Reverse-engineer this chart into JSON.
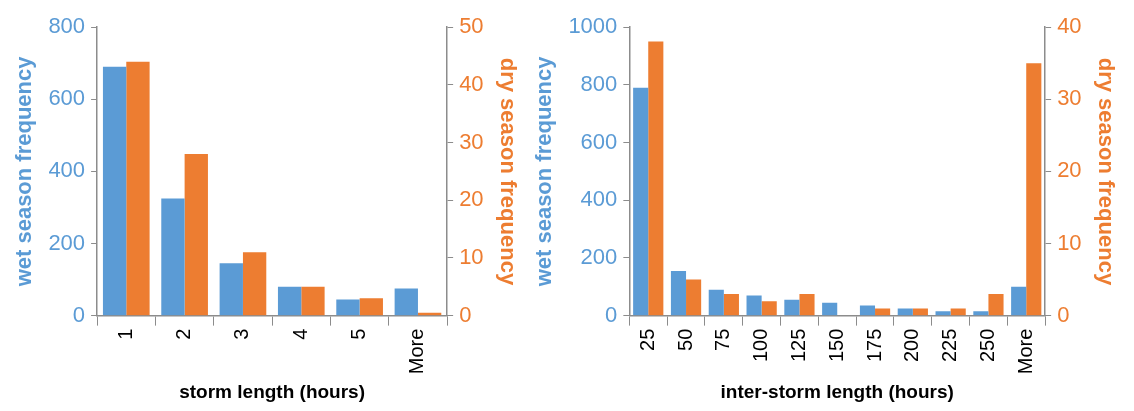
{
  "chart_data": [
    {
      "type": "bar",
      "xlabel": "storm length (hours)",
      "ylabel": "wet season frequency",
      "y2label": "dry season frequency",
      "categories": [
        "1",
        "2",
        "3",
        "4",
        "5",
        "More"
      ],
      "series": [
        {
          "name": null,
          "color": "#5b9bd5",
          "values": [
            690,
            325,
            145,
            80,
            45,
            75
          ]
        },
        {
          "color": "#ed7d31",
          "axis": "y2",
          "values": [
            44,
            28,
            11,
            5,
            3,
            0.5
          ]
        }
      ],
      "ylim": [
        0,
        800
      ],
      "yticks": [
        0,
        200,
        400,
        600,
        800
      ],
      "y2lim": [
        0,
        50
      ],
      "y2ticks": [
        0,
        10,
        20,
        30,
        40,
        50
      ],
      "grid": false,
      "legend": false
    },
    {
      "type": "bar",
      "xlabel": "inter-storm length (hours)",
      "ylabel": "wet season frequency",
      "y2label": "dry season frequency",
      "categories": [
        "25",
        "50",
        "75",
        "100",
        "125",
        "150",
        "175",
        "200",
        "225",
        "250",
        "More"
      ],
      "series": [
        {
          "color": "#5b9bd5",
          "values": [
            790,
            155,
            90,
            70,
            55,
            45,
            35,
            25,
            15,
            15,
            100
          ]
        },
        {
          "color": "#ed7d31",
          "axis": "y2",
          "values": [
            38,
            5,
            3,
            2,
            3,
            0,
            1,
            1,
            1,
            3,
            35
          ]
        }
      ],
      "ylim": [
        0,
        1000
      ],
      "yticks": [
        0,
        200,
        400,
        600,
        800,
        1000
      ],
      "y2lim": [
        0,
        40
      ],
      "y2ticks": [
        0,
        10,
        20,
        30,
        40
      ],
      "grid": false,
      "legend": false
    }
  ]
}
